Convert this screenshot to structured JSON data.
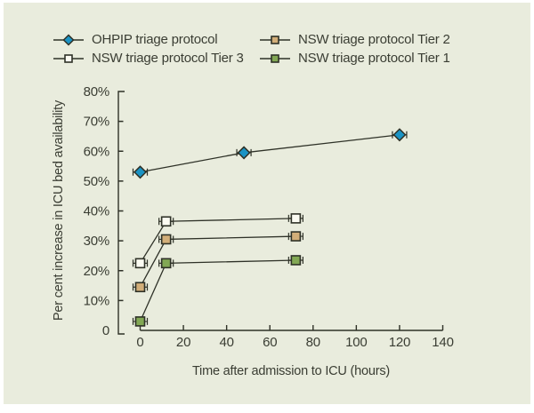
{
  "colors": {
    "page_background": "#ffffff",
    "panel_background": "#e9ecdd",
    "axis": "#2e3127",
    "text": "#3a3d33",
    "ohpip_blue": "#1a93c4",
    "tier2_tan": "#d2ae79",
    "tier3_white": "#fbfbf2",
    "tier1_green": "#82a854"
  },
  "legend": {
    "items": [
      {
        "label": "OHPIP triage protocol",
        "marker": "diamond",
        "color": "#1a93c4"
      },
      {
        "label": "NSW triage protocol Tier 2",
        "marker": "square",
        "color": "#d2ae79"
      },
      {
        "label": "NSW triage protocol Tier 3",
        "marker": "square",
        "color": "#fbfbf2"
      },
      {
        "label": "NSW triage protocol Tier 1",
        "marker": "square",
        "color": "#82a854"
      }
    ]
  },
  "chart_data": {
    "type": "line",
    "title": "",
    "xlabel": "Time after admission to ICU (hours)",
    "ylabel": "Per cent increase in ICU bed availability",
    "xlim": [
      0,
      140
    ],
    "ylim": [
      0,
      80
    ],
    "grid": false,
    "legend_position": "top",
    "x_ticks": [
      0,
      20,
      40,
      60,
      80,
      100,
      120,
      140
    ],
    "x_tick_labels": [
      "0",
      "20",
      "40",
      "60",
      "80",
      "100",
      "120",
      "140"
    ],
    "y_ticks": [
      0,
      10,
      20,
      30,
      40,
      50,
      60,
      70,
      80
    ],
    "y_tick_labels": [
      "0",
      "10%",
      "20%",
      "30%",
      "40%",
      "50%",
      "60%",
      "70%",
      "80%"
    ],
    "xerr_hours": 3.3,
    "series": [
      {
        "name": "OHPIP triage protocol",
        "marker": "diamond",
        "color": "#1a93c4",
        "x": [
          0,
          48,
          120
        ],
        "y": [
          53,
          59.5,
          65.5
        ]
      },
      {
        "name": "NSW triage protocol Tier 3",
        "marker": "square",
        "color": "#fbfbf2",
        "x": [
          0,
          12,
          72
        ],
        "y": [
          22.5,
          36.5,
          37.5
        ]
      },
      {
        "name": "NSW triage protocol Tier 2",
        "marker": "square",
        "color": "#d2ae79",
        "x": [
          0,
          12,
          72
        ],
        "y": [
          14.5,
          30.5,
          31.5
        ]
      },
      {
        "name": "NSW triage protocol Tier 1",
        "marker": "square",
        "color": "#82a854",
        "x": [
          0,
          12,
          72
        ],
        "y": [
          3,
          22.5,
          23.5
        ]
      }
    ]
  }
}
